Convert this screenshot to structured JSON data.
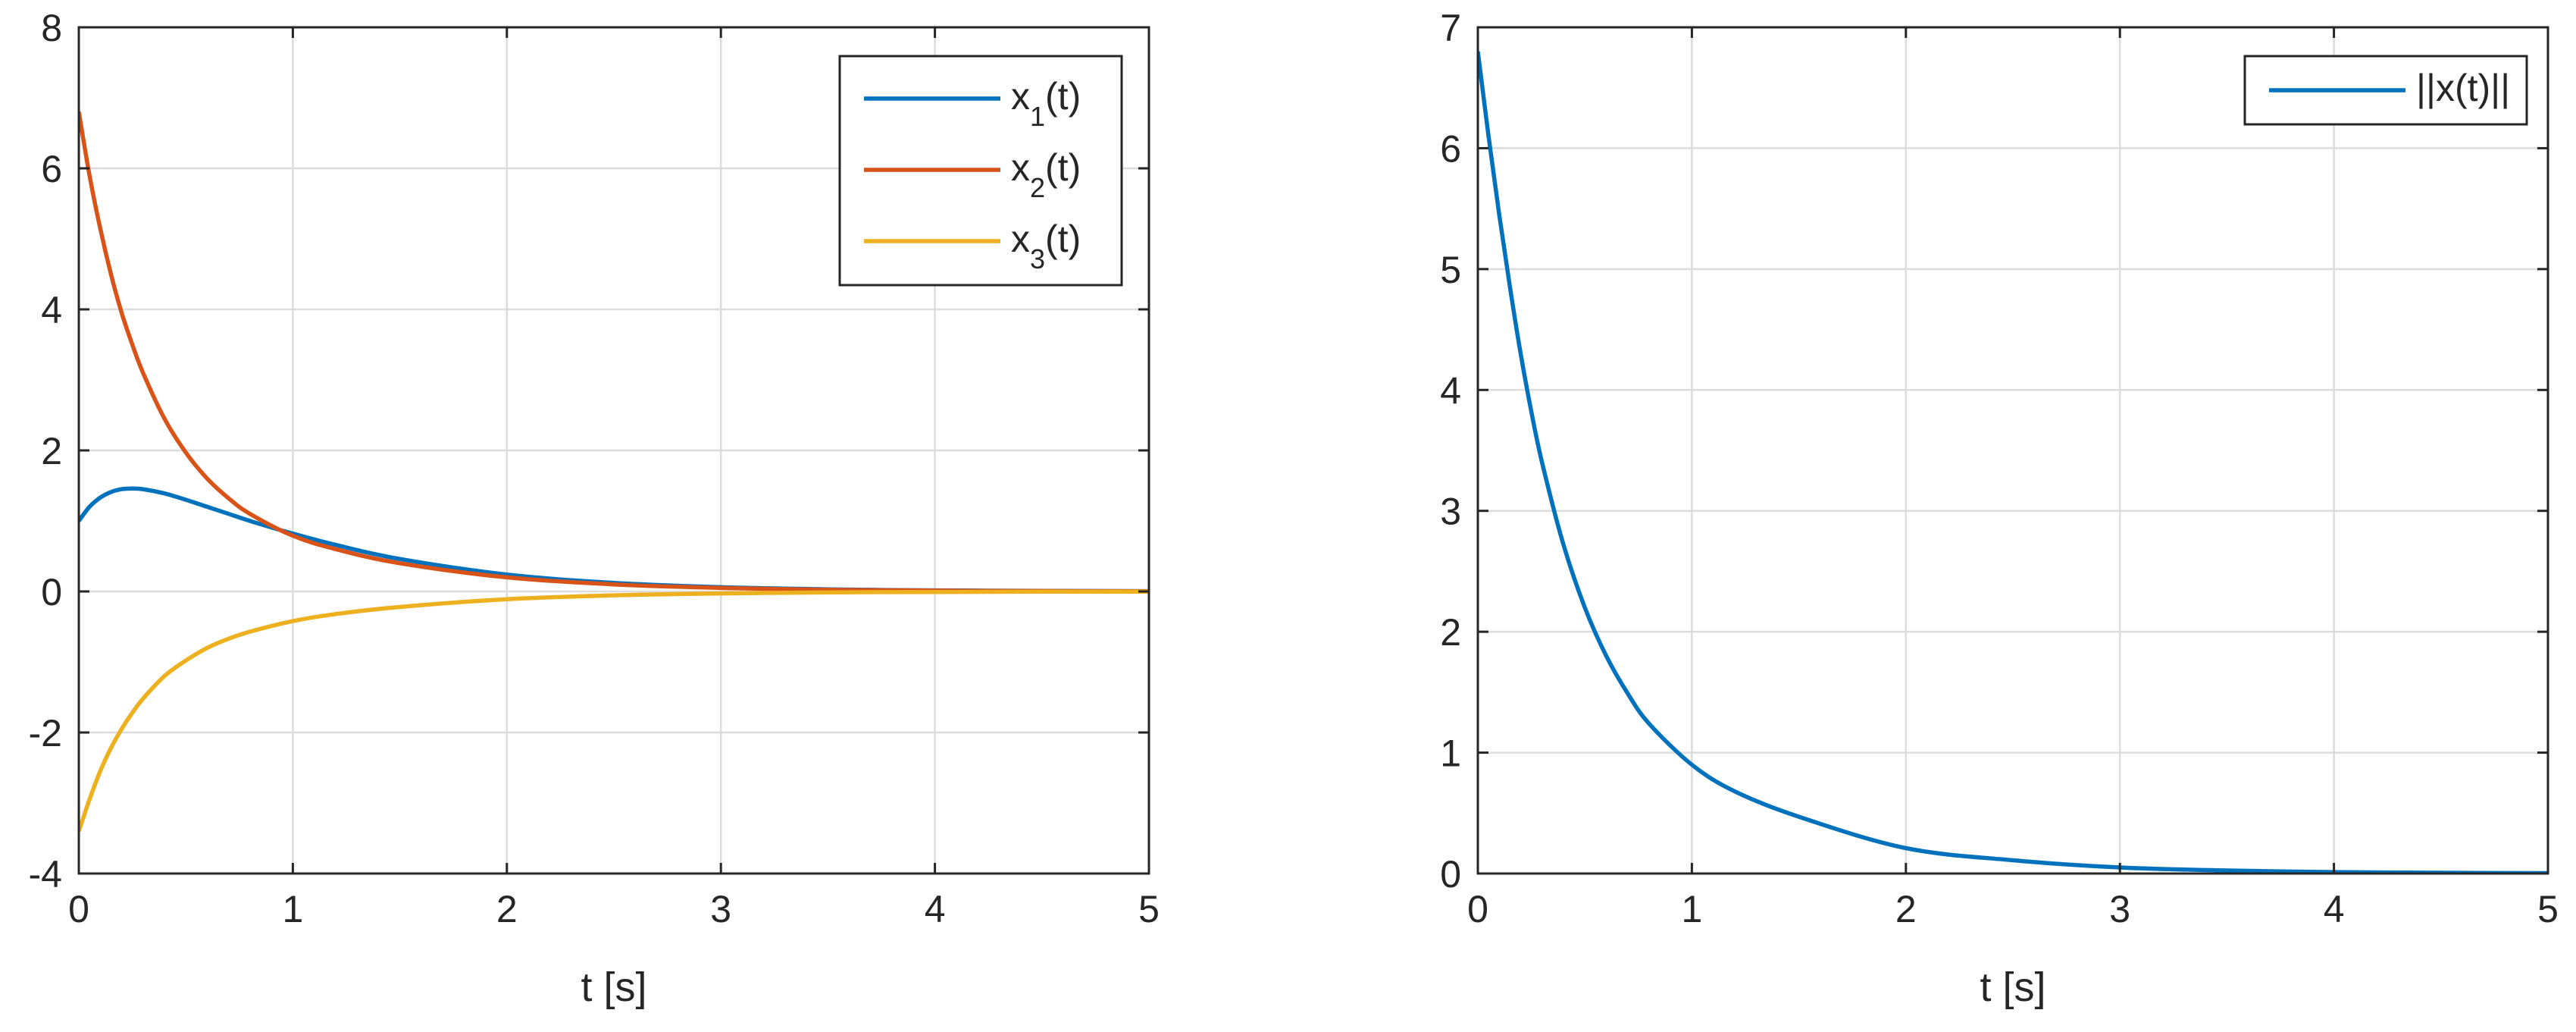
{
  "chart_data": [
    {
      "type": "line",
      "xlabel": "t [s]",
      "ylabel": "",
      "xlim": [
        0,
        5
      ],
      "ylim": [
        -4,
        8
      ],
      "xticks": [
        "0",
        "1",
        "2",
        "3",
        "4",
        "5"
      ],
      "yticks": [
        "-4",
        "-2",
        "0",
        "2",
        "4",
        "6",
        "8"
      ],
      "grid": true,
      "legend_position": "top-right",
      "series": [
        {
          "name": "x1(t)",
          "legend_main": "x",
          "legend_sub": "1",
          "legend_tail": "(t)",
          "color": "#0072BD",
          "x": [
            0,
            0.05,
            0.1,
            0.15,
            0.2,
            0.25,
            0.3,
            0.4,
            0.5,
            0.6,
            0.7,
            0.8,
            1.0,
            1.2,
            1.5,
            2.0,
            2.5,
            3.0,
            3.5,
            4.0,
            4.5,
            5.0
          ],
          "y": [
            1.0,
            1.2,
            1.33,
            1.41,
            1.45,
            1.46,
            1.45,
            1.39,
            1.3,
            1.2,
            1.1,
            1.0,
            0.82,
            0.66,
            0.46,
            0.24,
            0.12,
            0.06,
            0.03,
            0.015,
            0.008,
            0.004
          ]
        },
        {
          "name": "x2(t)",
          "legend_main": "x",
          "legend_sub": "2",
          "legend_tail": "(t)",
          "color": "#D95319",
          "x": [
            0,
            0.05,
            0.1,
            0.15,
            0.2,
            0.25,
            0.3,
            0.4,
            0.5,
            0.6,
            0.7,
            0.8,
            1.0,
            1.2,
            1.5,
            2.0,
            2.5,
            3.0,
            3.5,
            4.0,
            4.5,
            5.0
          ],
          "y": [
            6.8,
            5.9,
            5.15,
            4.5,
            3.95,
            3.5,
            3.1,
            2.45,
            1.97,
            1.6,
            1.32,
            1.1,
            0.79,
            0.6,
            0.4,
            0.2,
            0.1,
            0.05,
            0.025,
            0.012,
            0.006,
            0.003
          ]
        },
        {
          "name": "x3(t)",
          "legend_main": "x",
          "legend_sub": "3",
          "legend_tail": "(t)",
          "color": "#EDB120",
          "x": [
            0,
            0.05,
            0.1,
            0.15,
            0.2,
            0.25,
            0.3,
            0.4,
            0.5,
            0.6,
            0.7,
            0.8,
            1.0,
            1.2,
            1.5,
            2.0,
            2.5,
            3.0,
            3.5,
            4.0,
            4.5,
            5.0
          ],
          "y": [
            -3.4,
            -2.95,
            -2.55,
            -2.22,
            -1.95,
            -1.72,
            -1.52,
            -1.2,
            -0.98,
            -0.8,
            -0.67,
            -0.57,
            -0.42,
            -0.32,
            -0.22,
            -0.11,
            -0.055,
            -0.028,
            -0.014,
            -0.007,
            -0.003,
            -0.002
          ]
        }
      ]
    },
    {
      "type": "line",
      "xlabel": "t [s]",
      "ylabel": "",
      "xlim": [
        0,
        5
      ],
      "ylim": [
        0,
        7
      ],
      "xticks": [
        "0",
        "1",
        "2",
        "3",
        "4",
        "5"
      ],
      "yticks": [
        "0",
        "1",
        "2",
        "3",
        "4",
        "5",
        "6",
        "7"
      ],
      "grid": true,
      "legend_position": "top-right",
      "series": [
        {
          "name": "||x(t)||",
          "legend_main": "||x(t)||",
          "legend_sub": "",
          "legend_tail": "",
          "color": "#0072BD",
          "x": [
            0,
            0.05,
            0.1,
            0.15,
            0.2,
            0.25,
            0.3,
            0.4,
            0.5,
            0.6,
            0.7,
            0.8,
            1.0,
            1.2,
            1.5,
            2.0,
            2.5,
            3.0,
            3.5,
            4.0,
            4.5,
            5.0
          ],
          "y": [
            6.8,
            6.1,
            5.45,
            4.85,
            4.3,
            3.82,
            3.4,
            2.72,
            2.2,
            1.8,
            1.49,
            1.24,
            0.9,
            0.68,
            0.47,
            0.21,
            0.11,
            0.05,
            0.025,
            0.012,
            0.006,
            0.003
          ]
        }
      ]
    }
  ]
}
